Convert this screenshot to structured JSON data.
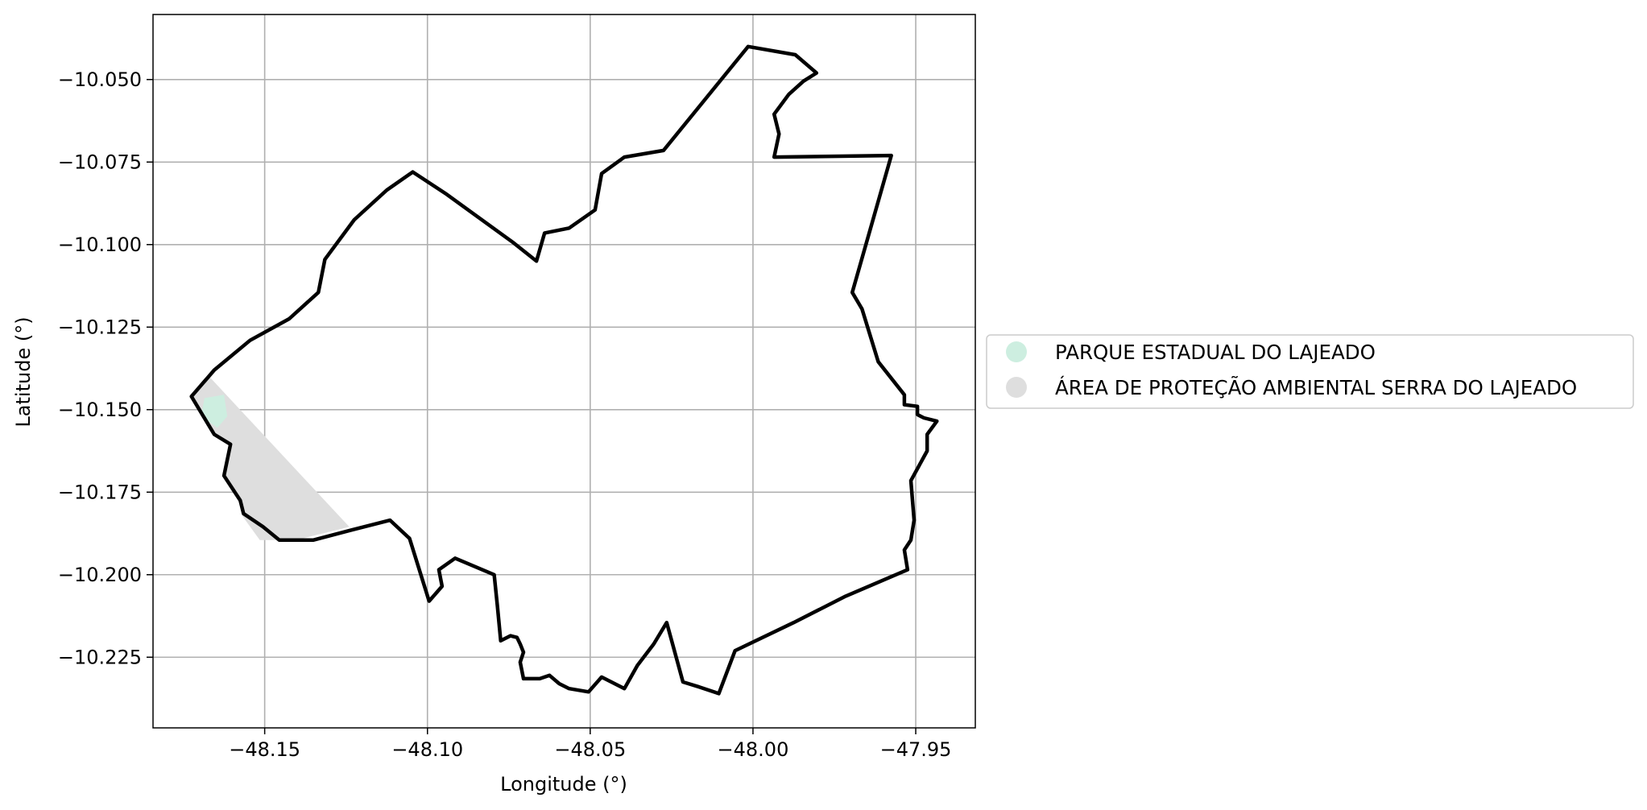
{
  "map": {
    "type": "map",
    "xlabel": "Longitude (°)",
    "ylabel": "Latitude (°)",
    "xlim": [
      -48.1843,
      -47.9317
    ],
    "ylim": [
      -10.2464,
      -10.0303
    ],
    "grid": true,
    "x_ticks": [
      -48.15,
      -48.1,
      -48.05,
      -48.0,
      -47.95
    ],
    "x_tick_labels": [
      "−48.15",
      "−48.10",
      "−48.05",
      "−48.00",
      "−47.95"
    ],
    "y_ticks": [
      -10.05,
      -10.075,
      -10.1,
      -10.125,
      -10.15,
      -10.175,
      -10.2,
      -10.225
    ],
    "y_tick_labels": [
      "−10.050",
      "−10.075",
      "−10.100",
      "−10.125",
      "−10.150",
      "−10.175",
      "−10.200",
      "−10.225"
    ],
    "legend": {
      "placement": "center-right outside",
      "entries": [
        {
          "label": "PARQUE ESTADUAL DO LAJEADO",
          "color": "#cdeee0"
        },
        {
          "label": "ÁREA DE PROTEÇÃO AMBIENTAL SERRA DO LAJEADO",
          "color": "#dedede"
        }
      ]
    },
    "layers": {
      "apa_region": {
        "color": "#dedede",
        "coords": [
          [
            -48.167,
            -10.14
          ],
          [
            -48.1725,
            -10.146
          ],
          [
            -48.1655,
            -10.1575
          ],
          [
            -48.1605,
            -10.1605
          ],
          [
            -48.1625,
            -10.17
          ],
          [
            -48.1575,
            -10.178
          ],
          [
            -48.157,
            -10.182
          ],
          [
            -48.1515,
            -10.1895
          ],
          [
            -48.1403,
            -10.1895
          ],
          [
            -48.124,
            -10.1855
          ]
        ]
      },
      "park_region": {
        "color": "#cdeee0",
        "coords": [
          [
            -48.1685,
            -10.1465
          ],
          [
            -48.1625,
            -10.1455
          ],
          [
            -48.1615,
            -10.152
          ],
          [
            -48.1645,
            -10.1555
          ],
          [
            -48.1695,
            -10.152
          ]
        ]
      },
      "boundary": {
        "color": "#000000",
        "coords": [
          [
            -48.1725,
            -10.146
          ],
          [
            -48.1655,
            -10.138
          ],
          [
            -48.1545,
            -10.129
          ],
          [
            -48.1425,
            -10.1225
          ],
          [
            -48.1335,
            -10.1145
          ],
          [
            -48.1315,
            -10.1045
          ],
          [
            -48.1225,
            -10.0925
          ],
          [
            -48.1125,
            -10.0835
          ],
          [
            -48.1045,
            -10.078
          ],
          [
            -48.0945,
            -10.0845
          ],
          [
            -48.0735,
            -10.0995
          ],
          [
            -48.0665,
            -10.105
          ],
          [
            -48.064,
            -10.0965
          ],
          [
            -48.0565,
            -10.095
          ],
          [
            -48.0485,
            -10.0895
          ],
          [
            -48.0465,
            -10.0785
          ],
          [
            -48.0395,
            -10.0735
          ],
          [
            -48.0275,
            -10.0715
          ],
          [
            -48.0015,
            -10.04
          ],
          [
            -47.987,
            -10.0425
          ],
          [
            -47.9805,
            -10.048
          ],
          [
            -47.9845,
            -10.0505
          ],
          [
            -47.989,
            -10.0545
          ],
          [
            -47.9935,
            -10.0605
          ],
          [
            -47.992,
            -10.0665
          ],
          [
            -47.9935,
            -10.0735
          ],
          [
            -47.9575,
            -10.073
          ],
          [
            -47.9695,
            -10.1145
          ],
          [
            -47.9665,
            -10.1195
          ],
          [
            -47.9615,
            -10.1355
          ],
          [
            -47.9535,
            -10.1455
          ],
          [
            -47.9535,
            -10.1485
          ],
          [
            -47.9495,
            -10.149
          ],
          [
            -47.9495,
            -10.1515
          ],
          [
            -47.9475,
            -10.1525
          ],
          [
            -47.9435,
            -10.1535
          ],
          [
            -47.9465,
            -10.1575
          ],
          [
            -47.9465,
            -10.1625
          ],
          [
            -47.9515,
            -10.1715
          ],
          [
            -47.9505,
            -10.1835
          ],
          [
            -47.9515,
            -10.1895
          ],
          [
            -47.9535,
            -10.1925
          ],
          [
            -47.9525,
            -10.1985
          ],
          [
            -47.9715,
            -10.2065
          ],
          [
            -47.9875,
            -10.2145
          ],
          [
            -48.0055,
            -10.223
          ],
          [
            -48.0105,
            -10.236
          ],
          [
            -48.0165,
            -10.234
          ],
          [
            -48.0215,
            -10.2325
          ],
          [
            -48.0265,
            -10.2145
          ],
          [
            -48.0305,
            -10.221
          ],
          [
            -48.0355,
            -10.2275
          ],
          [
            -48.0395,
            -10.2345
          ],
          [
            -48.0465,
            -10.231
          ],
          [
            -48.0505,
            -10.2355
          ],
          [
            -48.0565,
            -10.2345
          ],
          [
            -48.0595,
            -10.233
          ],
          [
            -48.0625,
            -10.2305
          ],
          [
            -48.0655,
            -10.2315
          ],
          [
            -48.0705,
            -10.2315
          ],
          [
            -48.0715,
            -10.2265
          ],
          [
            -48.0705,
            -10.2235
          ],
          [
            -48.0715,
            -10.221
          ],
          [
            -48.0725,
            -10.219
          ],
          [
            -48.0745,
            -10.2185
          ],
          [
            -48.0775,
            -10.22
          ],
          [
            -48.0785,
            -10.2095
          ],
          [
            -48.0795,
            -10.2
          ],
          [
            -48.0915,
            -10.195
          ],
          [
            -48.0965,
            -10.1985
          ],
          [
            -48.0955,
            -10.2035
          ],
          [
            -48.0995,
            -10.208
          ],
          [
            -48.1055,
            -10.189
          ],
          [
            -48.1115,
            -10.1835
          ],
          [
            -48.1235,
            -10.1865
          ],
          [
            -48.135,
            -10.1895
          ],
          [
            -48.1455,
            -10.1895
          ],
          [
            -48.1505,
            -10.1855
          ],
          [
            -48.1565,
            -10.1815
          ],
          [
            -48.1575,
            -10.1775
          ],
          [
            -48.1625,
            -10.17
          ],
          [
            -48.1605,
            -10.1605
          ],
          [
            -48.1655,
            -10.1575
          ],
          [
            -48.1725,
            -10.146
          ]
        ]
      }
    }
  }
}
